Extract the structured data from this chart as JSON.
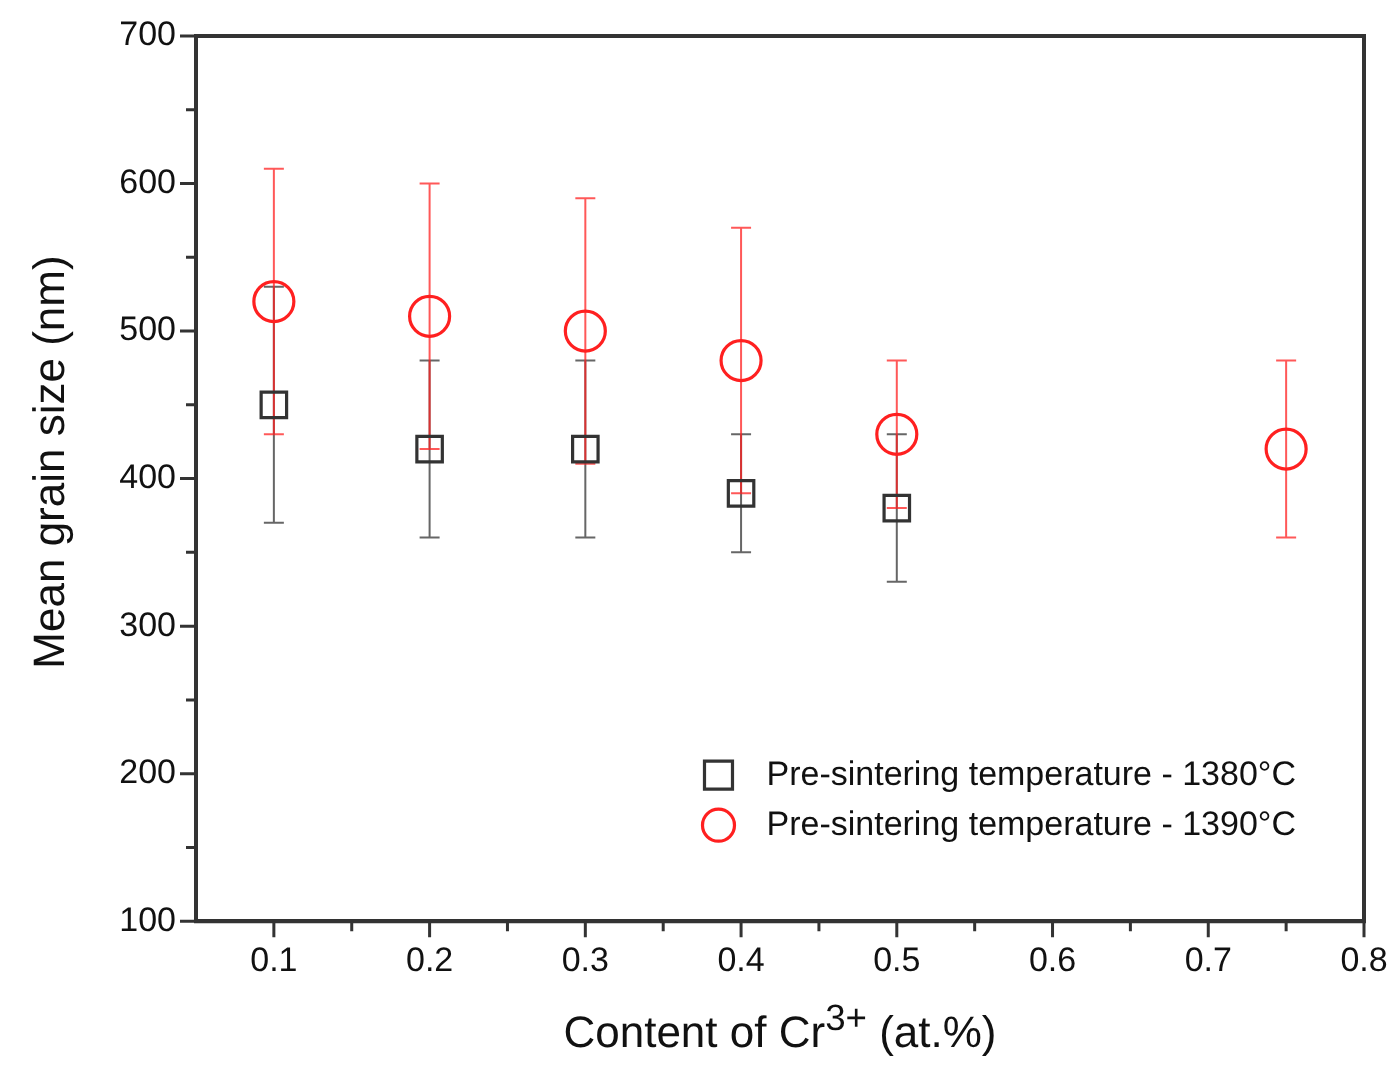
{
  "chart_data": {
    "type": "scatter",
    "xlabel": "Content of Cr$^{3+}$ (at.%)",
    "ylabel": "Mean grain size (nm)",
    "xlim": [
      0.05,
      0.8
    ],
    "xticks": [
      0.1,
      {
        "value": 0.15,
        "label": null
      },
      0.2,
      {
        "value": 0.25,
        "label": null
      },
      0.3,
      {
        "value": 0.35,
        "label": null
      },
      0.4,
      {
        "value": 0.45,
        "label": null
      },
      0.5,
      {
        "value": 0.55,
        "label": null
      },
      0.6,
      {
        "value": 0.65,
        "label": null
      },
      0.7,
      {
        "value": 0.75,
        "label": null
      },
      0.8
    ],
    "ylim": [
      100,
      700
    ],
    "yticks": [
      100,
      {
        "value": 150,
        "label": null
      },
      200,
      {
        "value": 250,
        "label": null
      },
      300,
      {
        "value": 350,
        "label": null
      },
      400,
      {
        "value": 450,
        "label": null
      },
      500,
      {
        "value": 550,
        "label": null
      },
      600,
      {
        "value": 650,
        "label": null
      },
      700
    ],
    "grid": false,
    "legend": "bottom right",
    "series": [
      {
        "name": "Pre-sintering temperature - 1380°C",
        "color": "#333333",
        "marker": "square",
        "x": [
          0.1,
          0.2,
          0.3,
          0.4,
          0.5
        ],
        "values": [
          450,
          420,
          420,
          390,
          380
        ],
        "errors": [
          [
            370,
            530
          ],
          [
            360,
            480
          ],
          [
            360,
            480
          ],
          [
            350,
            430
          ],
          [
            330,
            430
          ]
        ]
      },
      {
        "name": "Pre-sintering temperature - 1390°C",
        "color": "#ff2020",
        "marker": "circle",
        "x": [
          0.1,
          0.2,
          0.3,
          0.4,
          0.5,
          0.75
        ],
        "values": [
          520,
          510,
          500,
          480,
          430,
          420
        ],
        "errors": [
          [
            430,
            610
          ],
          [
            420,
            600
          ],
          [
            410,
            590
          ],
          [
            390,
            570
          ],
          [
            380,
            480
          ],
          [
            360,
            480
          ]
        ]
      }
    ]
  }
}
